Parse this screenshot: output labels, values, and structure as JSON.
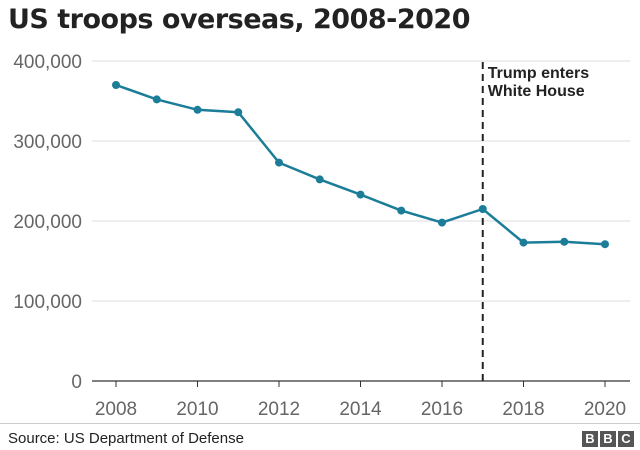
{
  "chart_data": {
    "type": "line",
    "title": "US troops overseas, 2008-2020",
    "x": [
      2008,
      2009,
      2010,
      2011,
      2012,
      2013,
      2014,
      2015,
      2016,
      2017,
      2018,
      2019,
      2020
    ],
    "values": [
      370000,
      352000,
      339000,
      336000,
      273000,
      252000,
      233000,
      213000,
      198000,
      215000,
      173000,
      174000,
      171000
    ],
    "xlim": [
      2008,
      2020
    ],
    "ylim": [
      0,
      400000
    ],
    "yticks": [
      "0",
      "100,000",
      "200,000",
      "300,000",
      "400,000"
    ],
    "xticks": [
      "2008",
      "2010",
      "2012",
      "2014",
      "2016",
      "2018",
      "2020"
    ],
    "grid": true,
    "line_color": "#1c7d99",
    "annotation": {
      "x": 2017,
      "line1": "Trump enters",
      "line2": "White House"
    }
  },
  "footer": {
    "source": "Source: US Department of Defense",
    "logo": "BBC"
  }
}
